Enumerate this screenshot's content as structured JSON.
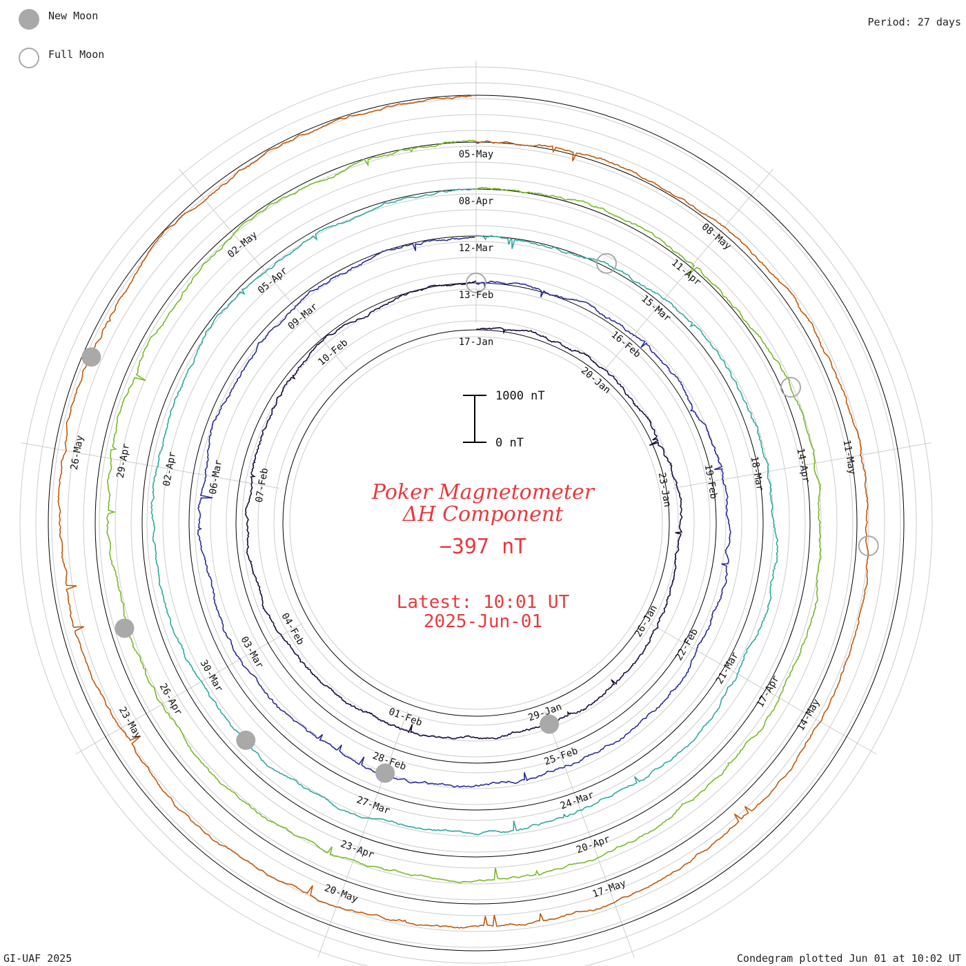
{
  "legend": {
    "new_moon_label": "New Moon",
    "full_moon_label": "Full Moon",
    "moon_color": "#a9a9a9"
  },
  "period_label": "Period: 27 days",
  "footer": {
    "left": "GI-UAF 2025",
    "right": "Condegram plotted Jun 01 at 10:02 UT"
  },
  "title": {
    "line1": "Poker Magnetometer",
    "line2": "ΔH Component",
    "current_value": "−397 nT",
    "latest_label": "Latest: 10:01 UT",
    "latest_date": "2025-Jun-01"
  },
  "scale_bar": {
    "top_label": "1000 nT",
    "bottom_label": "0 nT"
  },
  "chart_data": {
    "type": "line",
    "style": "condegram (spiral time series)",
    "period_days": 27,
    "value_range_nT": [
      -1000,
      1000
    ],
    "series": [
      {
        "start": "17-Jan",
        "end": "13-Feb",
        "color": "#1c0a3c",
        "tick_labels": [
          "17-Jan",
          "20-Jan",
          "23-Jan",
          "26-Jan",
          "29-Jan",
          "01-Feb",
          "04-Feb",
          "07-Feb",
          "10-Feb"
        ]
      },
      {
        "start": "13-Feb",
        "end": "12-Mar",
        "color": "#2a2c9a",
        "tick_labels": [
          "13-Feb",
          "16-Feb",
          "19-Feb",
          "22-Feb",
          "25-Feb",
          "28-Feb",
          "03-Mar",
          "06-Mar",
          "09-Mar"
        ]
      },
      {
        "start": "12-Mar",
        "end": "08-Apr",
        "color": "#2fa8a0",
        "tick_labels": [
          "12-Mar",
          "15-Mar",
          "18-Mar",
          "21-Mar",
          "24-Mar",
          "27-Mar",
          "30-Mar",
          "02-Apr",
          "05-Apr"
        ]
      },
      {
        "start": "08-Apr",
        "end": "05-May",
        "color": "#7ab82a",
        "tick_labels": [
          "08-Apr",
          "11-Apr",
          "14-Apr",
          "17-Apr",
          "20-Apr",
          "23-Apr",
          "26-Apr",
          "29-Apr",
          "02-May"
        ]
      },
      {
        "start": "05-May",
        "end": "01-Jun",
        "color": "#c0580c",
        "tick_labels": [
          "05-May",
          "08-May",
          "11-May",
          "14-May",
          "17-May",
          "20-May",
          "23-May",
          "26-May"
        ]
      }
    ],
    "new_moons": [
      "29-Jan",
      "28-Feb",
      "29-Mar",
      "27-Apr",
      "27-May"
    ],
    "full_moons": [
      "13-Feb",
      "14-Mar",
      "13-Apr",
      "12-May"
    ],
    "grid": true
  }
}
